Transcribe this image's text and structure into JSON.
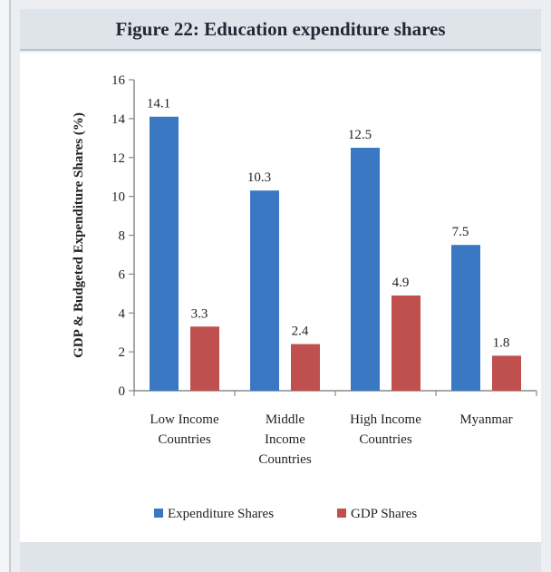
{
  "figure": {
    "title": "Figure 22: Education expenditure shares"
  },
  "colors": {
    "expenditure": "#3a78c3",
    "gdp": "#c0504d",
    "axis": "#8a8a8a",
    "title_bar": "#dfe4ea"
  },
  "chart_data": {
    "type": "bar",
    "title": "Figure 22: Education expenditure shares",
    "xlabel": "",
    "ylabel": "GDP & Budgeted Expenditure Shares (%)",
    "ylim": [
      0,
      16
    ],
    "yticks": [
      "0",
      "2",
      "4",
      "6",
      "8",
      "10",
      "12",
      "14",
      "16"
    ],
    "categories": [
      [
        "Low Income",
        "Countries"
      ],
      [
        "Middle",
        "Income",
        "Countries"
      ],
      [
        "High Income",
        "Countries"
      ],
      [
        "Myanmar"
      ]
    ],
    "series": [
      {
        "name": "Expenditure Shares",
        "values": [
          14.1,
          10.3,
          12.5,
          7.5
        ],
        "labels": [
          "14.1",
          "10.3",
          "12.5",
          "7.5"
        ]
      },
      {
        "name": "GDP Shares",
        "values": [
          3.3,
          2.4,
          4.9,
          1.8
        ],
        "labels": [
          "3.3",
          "2.4",
          "4.9",
          "1.8"
        ]
      }
    ],
    "legend_position": "bottom",
    "grid": false
  }
}
